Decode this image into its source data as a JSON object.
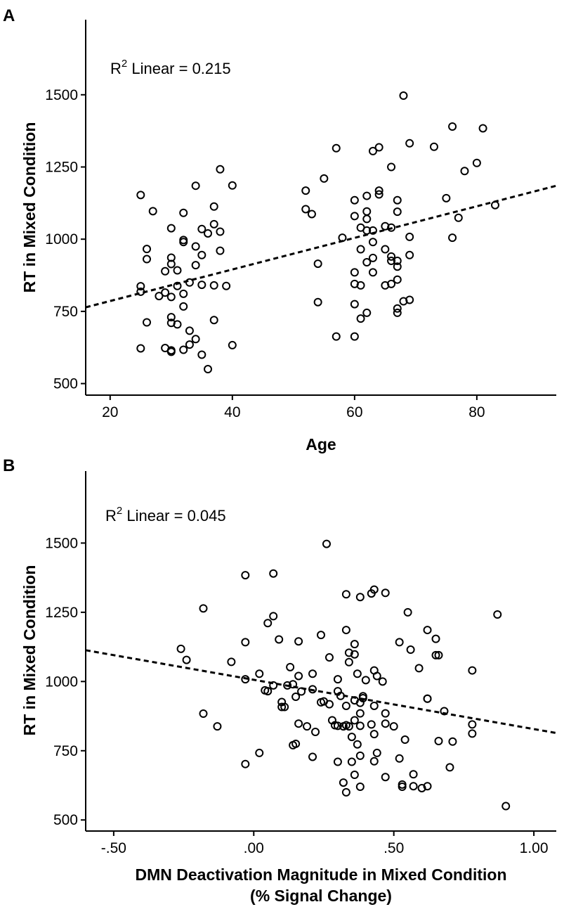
{
  "chart_data": [
    {
      "panel": "A",
      "type": "scatter",
      "title": "",
      "xlabel": "Age",
      "ylabel": "RT in Mixed Condition",
      "xlim": [
        16,
        93
      ],
      "ylim": [
        460,
        1760
      ],
      "xticks": [
        20,
        40,
        60,
        80
      ],
      "xtick_labels": [
        "20",
        "40",
        "60",
        "80"
      ],
      "yticks": [
        500,
        750,
        1000,
        1250,
        1500
      ],
      "ytick_labels": [
        "500",
        "750",
        "1000",
        "1250",
        "1500"
      ],
      "annotation": {
        "base": "R",
        "sup": "2",
        "rest": " Linear = 0.215"
      },
      "fit_line": {
        "style": "dashed",
        "x": [
          16,
          93
        ],
        "y": [
          764,
          1185
        ]
      },
      "points": [
        [
          25,
          1153
        ],
        [
          25,
          837
        ],
        [
          25,
          818
        ],
        [
          25,
          622
        ],
        [
          26,
          966
        ],
        [
          26,
          931
        ],
        [
          26,
          712
        ],
        [
          27,
          1097
        ],
        [
          28,
          803
        ],
        [
          29,
          889
        ],
        [
          29,
          815
        ],
        [
          29,
          623
        ],
        [
          30,
          1038
        ],
        [
          30,
          936
        ],
        [
          30,
          914
        ],
        [
          30,
          800
        ],
        [
          30,
          730
        ],
        [
          30,
          710
        ],
        [
          30,
          615
        ],
        [
          30,
          610
        ],
        [
          31,
          892
        ],
        [
          31,
          838
        ],
        [
          31,
          705
        ],
        [
          32,
          1091
        ],
        [
          32,
          997
        ],
        [
          32,
          990
        ],
        [
          32,
          811
        ],
        [
          32,
          767
        ],
        [
          32,
          617
        ],
        [
          33,
          850
        ],
        [
          33,
          683
        ],
        [
          33,
          635
        ],
        [
          34,
          1185
        ],
        [
          34,
          975
        ],
        [
          34,
          910
        ],
        [
          34,
          654
        ],
        [
          35,
          1035
        ],
        [
          35,
          945
        ],
        [
          35,
          842
        ],
        [
          35,
          600
        ],
        [
          36,
          1020
        ],
        [
          36,
          550
        ],
        [
          37,
          1113
        ],
        [
          37,
          1052
        ],
        [
          37,
          840
        ],
        [
          37,
          720
        ],
        [
          38,
          1242
        ],
        [
          38,
          1026
        ],
        [
          38,
          960
        ],
        [
          39,
          838
        ],
        [
          40,
          1186
        ],
        [
          40,
          633
        ],
        [
          52,
          1168
        ],
        [
          52,
          1104
        ],
        [
          53,
          1087
        ],
        [
          54,
          915
        ],
        [
          54,
          782
        ],
        [
          55,
          1210
        ],
        [
          57,
          1315
        ],
        [
          57,
          663
        ],
        [
          58,
          1005
        ],
        [
          60,
          1135
        ],
        [
          60,
          1080
        ],
        [
          60,
          885
        ],
        [
          60,
          845
        ],
        [
          60,
          775
        ],
        [
          60,
          663
        ],
        [
          61,
          1040
        ],
        [
          61,
          965
        ],
        [
          61,
          840
        ],
        [
          61,
          725
        ],
        [
          62,
          1150
        ],
        [
          62,
          1096
        ],
        [
          62,
          1070
        ],
        [
          62,
          1030
        ],
        [
          62,
          920
        ],
        [
          62,
          745
        ],
        [
          63,
          1030
        ],
        [
          63,
          990
        ],
        [
          63,
          935
        ],
        [
          63,
          885
        ],
        [
          63,
          1305
        ],
        [
          64,
          1318
        ],
        [
          64,
          1168
        ],
        [
          64,
          1155
        ],
        [
          65,
          1045
        ],
        [
          65,
          965
        ],
        [
          65,
          840
        ],
        [
          66,
          1250
        ],
        [
          66,
          1040
        ],
        [
          66,
          940
        ],
        [
          66,
          925
        ],
        [
          66,
          845
        ],
        [
          67,
          1135
        ],
        [
          67,
          1095
        ],
        [
          67,
          925
        ],
        [
          67,
          905
        ],
        [
          67,
          860
        ],
        [
          67,
          760
        ],
        [
          67,
          745
        ],
        [
          68,
          1497
        ],
        [
          68,
          785
        ],
        [
          69,
          1332
        ],
        [
          69,
          1008
        ],
        [
          69,
          945
        ],
        [
          69,
          790
        ],
        [
          73,
          1320
        ],
        [
          75,
          1142
        ],
        [
          76,
          1390
        ],
        [
          76,
          1005
        ],
        [
          77,
          1074
        ],
        [
          78,
          1236
        ],
        [
          80,
          1264
        ],
        [
          81,
          1384
        ],
        [
          83,
          1118
        ]
      ]
    },
    {
      "panel": "B",
      "type": "scatter",
      "title": "",
      "xlabel": "DMN Deactivation Magnitude in Mixed Condition",
      "xlabel2": "(% Signal Change)",
      "ylabel": "RT in Mixed Condition",
      "xlim": [
        -0.6,
        1.08
      ],
      "ylim": [
        460,
        1760
      ],
      "xticks": [
        -0.5,
        0.0,
        0.5,
        1.0
      ],
      "xtick_labels": [
        "-.50",
        ".00",
        ".50",
        "1.00"
      ],
      "yticks": [
        500,
        750,
        1000,
        1250,
        1500
      ],
      "ytick_labels": [
        "500",
        "750",
        "1000",
        "1250",
        "1500"
      ],
      "annotation": {
        "base": "R",
        "sup": "2",
        "rest": " Linear = 0.045"
      },
      "fit_line": {
        "style": "dashed",
        "x": [
          -0.6,
          1.08
        ],
        "y": [
          1113,
          814
        ]
      },
      "points": [
        [
          -0.26,
          1118
        ],
        [
          -0.24,
          1078
        ],
        [
          -0.18,
          1264
        ],
        [
          -0.18,
          884
        ],
        [
          -0.13,
          838
        ],
        [
          -0.08,
          1071
        ],
        [
          -0.03,
          1008
        ],
        [
          -0.03,
          1384
        ],
        [
          -0.03,
          1142
        ],
        [
          -0.03,
          702
        ],
        [
          0.02,
          742
        ],
        [
          0.02,
          1028
        ],
        [
          0.04,
          968
        ],
        [
          0.05,
          1211
        ],
        [
          0.05,
          965
        ],
        [
          0.07,
          1390
        ],
        [
          0.07,
          1236
        ],
        [
          0.07,
          986
        ],
        [
          0.09,
          1152
        ],
        [
          0.1,
          926
        ],
        [
          0.1,
          908
        ],
        [
          0.11,
          908
        ],
        [
          0.12,
          986
        ],
        [
          0.13,
          1052
        ],
        [
          0.14,
          990
        ],
        [
          0.14,
          770
        ],
        [
          0.15,
          775
        ],
        [
          0.15,
          945
        ],
        [
          0.16,
          1145
        ],
        [
          0.16,
          1020
        ],
        [
          0.16,
          848
        ],
        [
          0.17,
          964
        ],
        [
          0.19,
          838
        ],
        [
          0.21,
          1028
        ],
        [
          0.21,
          972
        ],
        [
          0.21,
          728
        ],
        [
          0.22,
          818
        ],
        [
          0.24,
          1168
        ],
        [
          0.24,
          925
        ],
        [
          0.25,
          928
        ],
        [
          0.26,
          1497
        ],
        [
          0.27,
          1087
        ],
        [
          0.27,
          918
        ],
        [
          0.28,
          860
        ],
        [
          0.29,
          842
        ],
        [
          0.3,
          1008
        ],
        [
          0.3,
          965
        ],
        [
          0.3,
          710
        ],
        [
          0.3,
          840
        ],
        [
          0.31,
          948
        ],
        [
          0.32,
          635
        ],
        [
          0.32,
          838
        ],
        [
          0.33,
          1315
        ],
        [
          0.33,
          1186
        ],
        [
          0.33,
          842
        ],
        [
          0.33,
          912
        ],
        [
          0.33,
          600
        ],
        [
          0.34,
          1104
        ],
        [
          0.34,
          1070
        ],
        [
          0.34,
          838
        ],
        [
          0.35,
          710
        ],
        [
          0.35,
          800
        ],
        [
          0.36,
          860
        ],
        [
          0.36,
          1135
        ],
        [
          0.36,
          1098
        ],
        [
          0.36,
          932
        ],
        [
          0.36,
          663
        ],
        [
          0.37,
          1028
        ],
        [
          0.37,
          773
        ],
        [
          0.38,
          1305
        ],
        [
          0.38,
          923
        ],
        [
          0.38,
          885
        ],
        [
          0.38,
          840
        ],
        [
          0.38,
          732
        ],
        [
          0.38,
          620
        ],
        [
          0.39,
          947
        ],
        [
          0.39,
          940
        ],
        [
          0.4,
          1005
        ],
        [
          0.42,
          1318
        ],
        [
          0.42,
          845
        ],
        [
          0.43,
          1332
        ],
        [
          0.43,
          1040
        ],
        [
          0.43,
          912
        ],
        [
          0.43,
          810
        ],
        [
          0.43,
          712
        ],
        [
          0.44,
          1020
        ],
        [
          0.44,
          742
        ],
        [
          0.46,
          1000
        ],
        [
          0.47,
          1320
        ],
        [
          0.47,
          885
        ],
        [
          0.47,
          848
        ],
        [
          0.47,
          655
        ],
        [
          0.5,
          838
        ],
        [
          0.52,
          722
        ],
        [
          0.52,
          1142
        ],
        [
          0.53,
          628
        ],
        [
          0.53,
          620
        ],
        [
          0.54,
          790
        ],
        [
          0.55,
          1250
        ],
        [
          0.56,
          1115
        ],
        [
          0.57,
          665
        ],
        [
          0.57,
          622
        ],
        [
          0.59,
          1048
        ],
        [
          0.6,
          615
        ],
        [
          0.62,
          1186
        ],
        [
          0.62,
          938
        ],
        [
          0.62,
          938
        ],
        [
          0.62,
          622
        ],
        [
          0.65,
          1154
        ],
        [
          0.65,
          1095
        ],
        [
          0.66,
          1095
        ],
        [
          0.66,
          785
        ],
        [
          0.68,
          893
        ],
        [
          0.7,
          690
        ],
        [
          0.71,
          783
        ],
        [
          0.78,
          1040
        ],
        [
          0.78,
          845
        ],
        [
          0.78,
          812
        ],
        [
          0.87,
          1242
        ],
        [
          0.9,
          550
        ]
      ]
    }
  ]
}
